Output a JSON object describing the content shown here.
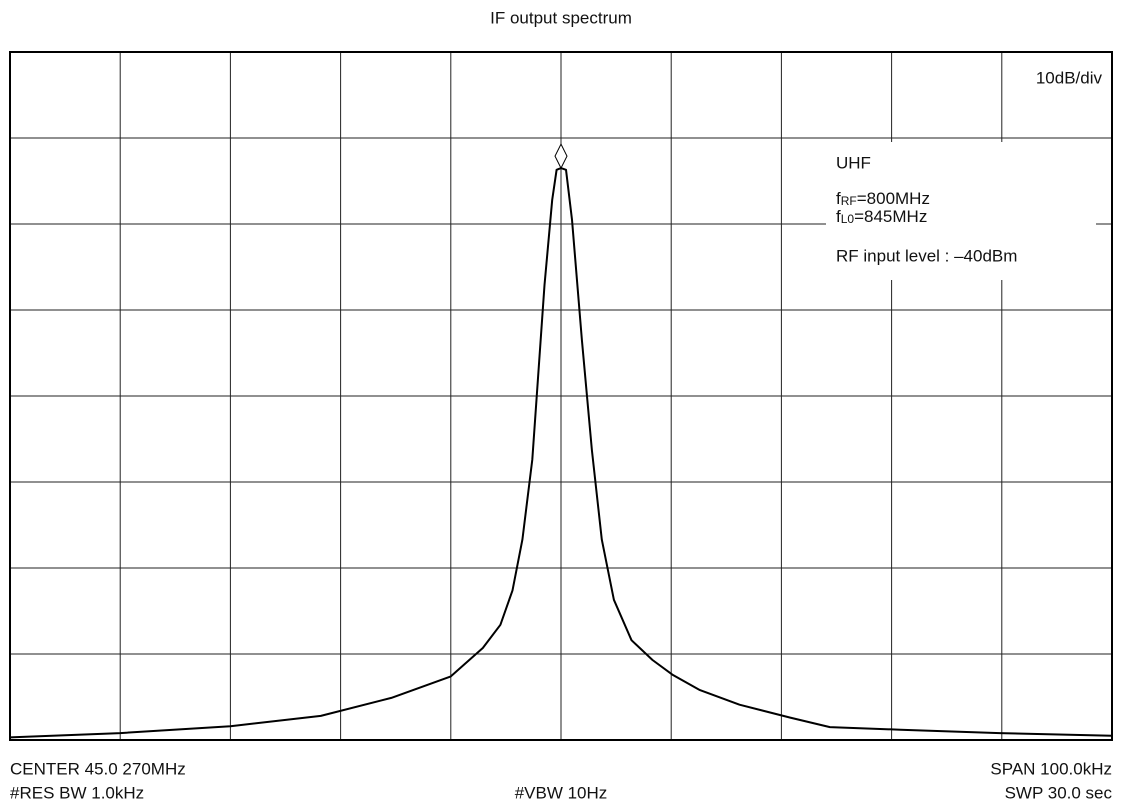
{
  "chart_data": {
    "type": "line",
    "title": "IF output spectrum",
    "scale_label": "10dB/div",
    "annotations": {
      "band": "UHF",
      "frf": {
        "base": "f",
        "sub": "RF",
        "rest": "=800MHz"
      },
      "flo": {
        "base": "f",
        "sub": "L0",
        "rest": "=845MHz"
      },
      "level": "RF input level  : –40dBm"
    },
    "footer": {
      "center": "CENTER 45.0 270MHz",
      "rbw": "#RES BW 1.0kHz",
      "vbw": "#VBW 10Hz",
      "span": "SPAN 100.0kHz",
      "sweep": "SWP 30.0 sec"
    },
    "xlim": [
      -50,
      50
    ],
    "ylim": [
      -80,
      0
    ],
    "xticks": [
      -50,
      -40,
      -30,
      -20,
      -10,
      0,
      10,
      20,
      30,
      40,
      50
    ],
    "yticks": [
      -80,
      -70,
      -60,
      -50,
      -40,
      -30,
      -20,
      -10,
      0
    ],
    "grid": true,
    "series": [
      {
        "name": "IF output",
        "color": "#000000",
        "x": [
          -50,
          -40,
          -30,
          -21.8,
          -15.4,
          -10,
          -7.1,
          -5.5,
          -4.4,
          -3.5,
          -2.6,
          -1.5,
          -0.8,
          -0.4,
          0,
          0.45,
          1.0,
          1.9,
          2.8,
          3.7,
          4.8,
          6.4,
          8.3,
          10.1,
          12.6,
          16.2,
          20.8,
          24.4,
          30.8,
          39.8,
          50
        ],
        "values": [
          -79.7,
          -79.2,
          -78.4,
          -77.2,
          -75.1,
          -72.6,
          -69.3,
          -66.6,
          -62.6,
          -56.7,
          -47.4,
          -27.1,
          -17.2,
          -13.7,
          -13.5,
          -13.7,
          -19.5,
          -33.5,
          -46.3,
          -56.7,
          -63.7,
          -68.4,
          -70.7,
          -72.4,
          -74.2,
          -75.9,
          -77.4,
          -78.5,
          -78.8,
          -79.2,
          -79.5
        ]
      }
    ]
  }
}
